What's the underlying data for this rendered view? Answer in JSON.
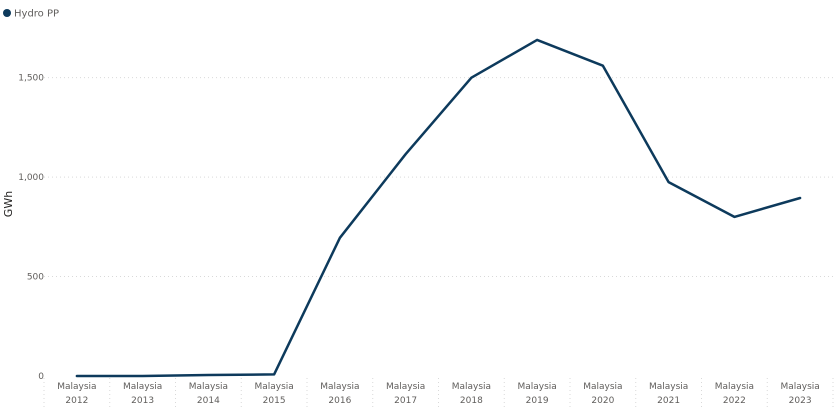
{
  "chart_data": {
    "type": "line",
    "legend": {
      "placement": "top-left",
      "entries": [
        "Hydro PP"
      ]
    },
    "ylabel": "GWh",
    "xlabel": "",
    "ylim": [
      0,
      1800
    ],
    "y_ticks": [
      {
        "value": 0,
        "label": "0"
      },
      {
        "value": 500,
        "label": "500"
      },
      {
        "value": 1000,
        "label": "1,000"
      },
      {
        "value": 1500,
        "label": "1,500"
      }
    ],
    "grid": true,
    "categories": [
      {
        "country": "Malaysia",
        "year": "2012"
      },
      {
        "country": "Malaysia",
        "year": "2013"
      },
      {
        "country": "Malaysia",
        "year": "2014"
      },
      {
        "country": "Malaysia",
        "year": "2015"
      },
      {
        "country": "Malaysia",
        "year": "2016"
      },
      {
        "country": "Malaysia",
        "year": "2017"
      },
      {
        "country": "Malaysia",
        "year": "2018"
      },
      {
        "country": "Malaysia",
        "year": "2019"
      },
      {
        "country": "Malaysia",
        "year": "2020"
      },
      {
        "country": "Malaysia",
        "year": "2021"
      },
      {
        "country": "Malaysia",
        "year": "2022"
      },
      {
        "country": "Malaysia",
        "year": "2023"
      }
    ],
    "series": [
      {
        "name": "Hydro PP",
        "color": "#0d3a5c",
        "values": [
          0,
          0,
          5,
          8,
          695,
          1115,
          1500,
          1690,
          1560,
          975,
          800,
          895
        ]
      }
    ]
  }
}
